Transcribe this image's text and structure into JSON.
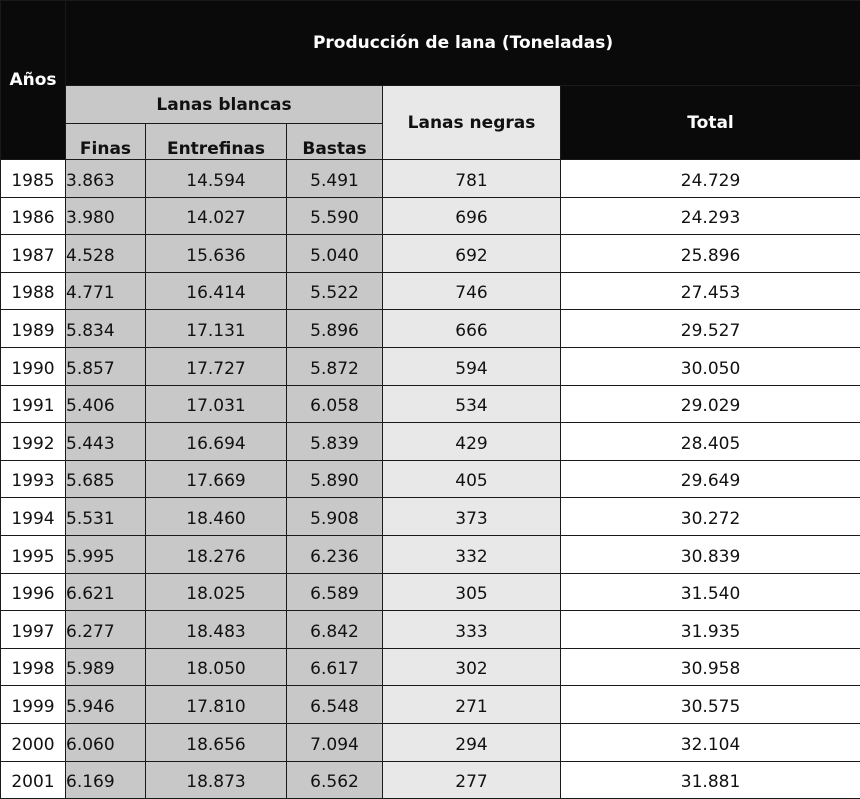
{
  "header": {
    "years": "Años",
    "title": "Producción de lana (Toneladas)",
    "white_group": "Lanas blancas",
    "finas": "Finas",
    "entrefinas": "Entrefinas",
    "bastas": "Bastas",
    "negras": "Lanas negras",
    "total": "Total"
  },
  "rows": [
    {
      "year": "1985",
      "finas": "3.863",
      "entrefinas": "14.594",
      "bastas": "5.491",
      "negras": "781",
      "total": "24.729"
    },
    {
      "year": "1986",
      "finas": "3.980",
      "entrefinas": "14.027",
      "bastas": "5.590",
      "negras": "696",
      "total": "24.293"
    },
    {
      "year": "1987",
      "finas": "4.528",
      "entrefinas": "15.636",
      "bastas": "5.040",
      "negras": "692",
      "total": "25.896"
    },
    {
      "year": "1988",
      "finas": "4.771",
      "entrefinas": "16.414",
      "bastas": "5.522",
      "negras": "746",
      "total": "27.453"
    },
    {
      "year": "1989",
      "finas": "5.834",
      "entrefinas": "17.131",
      "bastas": "5.896",
      "negras": "666",
      "total": "29.527"
    },
    {
      "year": "1990",
      "finas": "5.857",
      "entrefinas": "17.727",
      "bastas": "5.872",
      "negras": "594",
      "total": "30.050"
    },
    {
      "year": "1991",
      "finas": "5.406",
      "entrefinas": "17.031",
      "bastas": "6.058",
      "negras": "534",
      "total": "29.029"
    },
    {
      "year": "1992",
      "finas": "5.443",
      "entrefinas": "16.694",
      "bastas": "5.839",
      "negras": "429",
      "total": "28.405"
    },
    {
      "year": "1993",
      "finas": "5.685",
      "entrefinas": "17.669",
      "bastas": "5.890",
      "negras": "405",
      "total": "29.649"
    },
    {
      "year": "1994",
      "finas": "5.531",
      "entrefinas": "18.460",
      "bastas": "5.908",
      "negras": "373",
      "total": "30.272"
    },
    {
      "year": "1995",
      "finas": "5.995",
      "entrefinas": "18.276",
      "bastas": "6.236",
      "negras": "332",
      "total": "30.839"
    },
    {
      "year": "1996",
      "finas": "6.621",
      "entrefinas": "18.025",
      "bastas": "6.589",
      "negras": "305",
      "total": "31.540"
    },
    {
      "year": "1997",
      "finas": "6.277",
      "entrefinas": "18.483",
      "bastas": "6.842",
      "negras": "333",
      "total": "31.935"
    },
    {
      "year": "1998",
      "finas": "5.989",
      "entrefinas": "18.050",
      "bastas": "6.617",
      "negras": "302",
      "total": "30.958"
    },
    {
      "year": "1999",
      "finas": "5.946",
      "entrefinas": "17.810",
      "bastas": "6.548",
      "negras": "271",
      "total": "30.575"
    },
    {
      "year": "2000",
      "finas": "6.060",
      "entrefinas": "18.656",
      "bastas": "7.094",
      "negras": "294",
      "total": "32.104"
    },
    {
      "year": "2001",
      "finas": "6.169",
      "entrefinas": "18.873",
      "bastas": "6.562",
      "negras": "277",
      "total": "31.881"
    }
  ],
  "colors": {
    "header_dark": "#0a0a0a",
    "white_wool_gray": "#c8c8c8",
    "black_wool_light": "#e8e8e8",
    "background": "#ffffff"
  }
}
